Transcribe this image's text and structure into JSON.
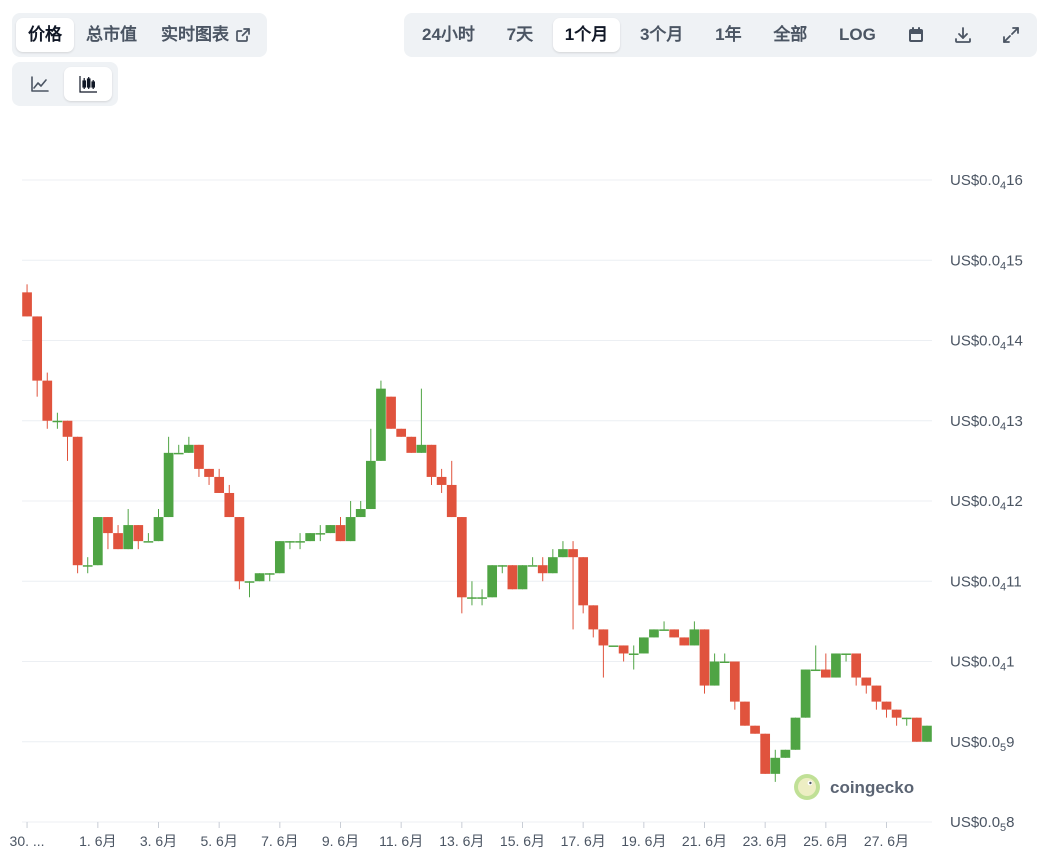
{
  "tabs": {
    "items": [
      {
        "label": "价格",
        "active": true
      },
      {
        "label": "总市值",
        "active": false
      },
      {
        "label": "实时图表",
        "active": false,
        "icon": "external-link-icon"
      }
    ]
  },
  "ranges": {
    "items": [
      {
        "label": "24小时",
        "active": false
      },
      {
        "label": "7天",
        "active": false
      },
      {
        "label": "1个月",
        "active": true
      },
      {
        "label": "3个月",
        "active": false
      },
      {
        "label": "1年",
        "active": false
      },
      {
        "label": "全部",
        "active": false
      },
      {
        "label": "LOG",
        "active": false
      }
    ],
    "icons": [
      "calendar-icon",
      "download-icon",
      "expand-icon"
    ]
  },
  "chart_types": {
    "items": [
      {
        "icon": "line-chart-icon",
        "active": false
      },
      {
        "icon": "candlestick-icon",
        "active": true
      }
    ]
  },
  "watermark": {
    "text": "coingecko",
    "icon": "gecko-logo-icon"
  },
  "colors": {
    "up": "#4fa444",
    "down": "#e0533d",
    "grid": "#eceff3",
    "axis_text": "#4b5563"
  },
  "chart_data": {
    "type": "candlestick",
    "title": "",
    "xlabel": "",
    "ylabel": "",
    "y_unit_note": "US$0.0₄1 = 0.00001",
    "ylim": [
      8,
      16
    ],
    "y_ticks": [
      {
        "value": 16,
        "prefix": "US$0.0",
        "sub": "4",
        "suffix": "16"
      },
      {
        "value": 15,
        "prefix": "US$0.0",
        "sub": "4",
        "suffix": "15"
      },
      {
        "value": 14,
        "prefix": "US$0.0",
        "sub": "4",
        "suffix": "14"
      },
      {
        "value": 13,
        "prefix": "US$0.0",
        "sub": "4",
        "suffix": "13"
      },
      {
        "value": 12,
        "prefix": "US$0.0",
        "sub": "4",
        "suffix": "12"
      },
      {
        "value": 11,
        "prefix": "US$0.0",
        "sub": "4",
        "suffix": "11"
      },
      {
        "value": 10,
        "prefix": "US$0.0",
        "sub": "4",
        "suffix": "1"
      },
      {
        "value": 9,
        "prefix": "US$0.0",
        "sub": "5",
        "suffix": "9"
      },
      {
        "value": 8,
        "prefix": "US$0.0",
        "sub": "5",
        "suffix": "8"
      }
    ],
    "x_ticks": [
      {
        "i": 0.5,
        "label": "30. ..."
      },
      {
        "i": 7.5,
        "label": "1. 6月"
      },
      {
        "i": 13.5,
        "label": "3. 6月"
      },
      {
        "i": 19.5,
        "label": "5. 6月"
      },
      {
        "i": 25.5,
        "label": "7. 6月"
      },
      {
        "i": 31.5,
        "label": "9. 6月"
      },
      {
        "i": 37.5,
        "label": "11. 6月"
      },
      {
        "i": 43.5,
        "label": "13. 6月"
      },
      {
        "i": 49.5,
        "label": "15. 6月"
      },
      {
        "i": 55.5,
        "label": "17. 6月"
      },
      {
        "i": 61.5,
        "label": "19. 6月"
      },
      {
        "i": 67.5,
        "label": "21. 6月"
      },
      {
        "i": 73.5,
        "label": "23. 6月"
      },
      {
        "i": 79.5,
        "label": "25. 6月"
      },
      {
        "i": 85.5,
        "label": "27. 6月"
      }
    ],
    "candles": [
      [
        14.6,
        14.3,
        14.7,
        14.3
      ],
      [
        14.3,
        13.5,
        14.3,
        13.3
      ],
      [
        13.5,
        13.0,
        13.6,
        12.9
      ],
      [
        13.0,
        13.0,
        13.1,
        12.9
      ],
      [
        13.0,
        12.8,
        13.0,
        12.5
      ],
      [
        12.8,
        11.2,
        12.8,
        11.1
      ],
      [
        11.2,
        11.2,
        11.3,
        11.1
      ],
      [
        11.2,
        11.8,
        11.8,
        11.2
      ],
      [
        11.8,
        11.6,
        11.8,
        11.4
      ],
      [
        11.6,
        11.4,
        11.7,
        11.4
      ],
      [
        11.4,
        11.7,
        11.9,
        11.4
      ],
      [
        11.7,
        11.5,
        11.7,
        11.4
      ],
      [
        11.5,
        11.5,
        11.6,
        11.5
      ],
      [
        11.5,
        11.8,
        11.9,
        11.5
      ],
      [
        11.8,
        12.6,
        12.8,
        11.8
      ],
      [
        12.6,
        12.6,
        12.7,
        12.6
      ],
      [
        12.6,
        12.7,
        12.8,
        12.6
      ],
      [
        12.7,
        12.4,
        12.7,
        12.3
      ],
      [
        12.4,
        12.3,
        12.4,
        12.2
      ],
      [
        12.3,
        12.1,
        12.4,
        12.1
      ],
      [
        12.1,
        11.8,
        12.2,
        11.8
      ],
      [
        11.8,
        11.0,
        11.8,
        10.9
      ],
      [
        11.0,
        11.0,
        11.0,
        10.8
      ],
      [
        11.0,
        11.1,
        11.1,
        11.0
      ],
      [
        11.1,
        11.1,
        11.1,
        11.0
      ],
      [
        11.1,
        11.5,
        11.5,
        11.1
      ],
      [
        11.5,
        11.5,
        11.5,
        11.4
      ],
      [
        11.5,
        11.5,
        11.6,
        11.4
      ],
      [
        11.5,
        11.6,
        11.6,
        11.5
      ],
      [
        11.6,
        11.6,
        11.7,
        11.5
      ],
      [
        11.6,
        11.7,
        11.7,
        11.6
      ],
      [
        11.7,
        11.5,
        11.8,
        11.5
      ],
      [
        11.5,
        11.8,
        12.0,
        11.5
      ],
      [
        11.8,
        11.9,
        12.0,
        11.8
      ],
      [
        11.9,
        12.5,
        12.9,
        11.9
      ],
      [
        12.5,
        13.4,
        13.5,
        12.5
      ],
      [
        13.3,
        12.9,
        13.3,
        12.9
      ],
      [
        12.9,
        12.8,
        12.9,
        12.8
      ],
      [
        12.8,
        12.6,
        12.8,
        12.6
      ],
      [
        12.6,
        12.7,
        13.4,
        12.6
      ],
      [
        12.7,
        12.3,
        12.7,
        12.2
      ],
      [
        12.3,
        12.2,
        12.4,
        12.1
      ],
      [
        12.2,
        11.8,
        12.5,
        11.8
      ],
      [
        11.8,
        10.8,
        11.8,
        10.6
      ],
      [
        10.8,
        10.8,
        11.0,
        10.7
      ],
      [
        10.8,
        10.8,
        10.9,
        10.7
      ],
      [
        10.8,
        11.2,
        11.2,
        10.8
      ],
      [
        11.2,
        11.2,
        11.2,
        11.1
      ],
      [
        11.2,
        10.9,
        11.2,
        10.9
      ],
      [
        10.9,
        11.2,
        11.2,
        10.9
      ],
      [
        11.2,
        11.2,
        11.3,
        11.2
      ],
      [
        11.2,
        11.1,
        11.3,
        11.0
      ],
      [
        11.1,
        11.3,
        11.4,
        11.1
      ],
      [
        11.3,
        11.4,
        11.5,
        11.3
      ],
      [
        11.4,
        11.3,
        11.5,
        10.4
      ],
      [
        11.3,
        10.7,
        11.3,
        10.6
      ],
      [
        10.7,
        10.4,
        10.7,
        10.3
      ],
      [
        10.4,
        10.2,
        10.4,
        9.8
      ],
      [
        10.2,
        10.2,
        10.2,
        10.2
      ],
      [
        10.2,
        10.1,
        10.2,
        10.0
      ],
      [
        10.1,
        10.1,
        10.2,
        9.9
      ],
      [
        10.1,
        10.3,
        10.3,
        10.1
      ],
      [
        10.3,
        10.4,
        10.4,
        10.3
      ],
      [
        10.4,
        10.4,
        10.5,
        10.4
      ],
      [
        10.4,
        10.3,
        10.4,
        10.3
      ],
      [
        10.3,
        10.2,
        10.3,
        10.2
      ],
      [
        10.2,
        10.4,
        10.5,
        10.2
      ],
      [
        10.4,
        9.7,
        10.4,
        9.6
      ],
      [
        9.7,
        10.0,
        10.1,
        9.7
      ],
      [
        10.0,
        10.0,
        10.1,
        10.0
      ],
      [
        10.0,
        9.5,
        10.0,
        9.4
      ],
      [
        9.5,
        9.2,
        9.5,
        9.2
      ],
      [
        9.2,
        9.1,
        9.2,
        9.1
      ],
      [
        9.1,
        8.6,
        9.1,
        8.6
      ],
      [
        8.6,
        8.8,
        8.9,
        8.5
      ],
      [
        8.8,
        8.9,
        8.9,
        8.8
      ],
      [
        8.9,
        9.3,
        9.3,
        8.9
      ],
      [
        9.3,
        9.9,
        9.9,
        9.3
      ],
      [
        9.9,
        9.9,
        10.2,
        9.9
      ],
      [
        9.9,
        9.8,
        10.1,
        9.8
      ],
      [
        9.8,
        10.1,
        10.1,
        9.8
      ],
      [
        10.1,
        10.1,
        10.1,
        10.0
      ],
      [
        10.1,
        9.8,
        10.1,
        9.7
      ],
      [
        9.8,
        9.7,
        9.8,
        9.6
      ],
      [
        9.7,
        9.5,
        9.7,
        9.4
      ],
      [
        9.5,
        9.4,
        9.5,
        9.3
      ],
      [
        9.4,
        9.3,
        9.4,
        9.2
      ],
      [
        9.3,
        9.3,
        9.3,
        9.2
      ],
      [
        9.3,
        9.0,
        9.3,
        9.0
      ],
      [
        9.0,
        9.2,
        9.2,
        9.0
      ]
    ]
  }
}
